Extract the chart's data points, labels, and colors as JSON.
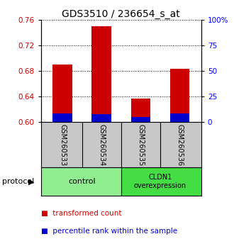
{
  "title": "GDS3510 / 236654_s_at",
  "samples": [
    "GSM260533",
    "GSM260534",
    "GSM260535",
    "GSM260536"
  ],
  "red_tops": [
    0.69,
    0.75,
    0.637,
    0.683
  ],
  "blue_tops": [
    0.613,
    0.612,
    0.608,
    0.613
  ],
  "baseline": 0.6,
  "ylim_left": [
    0.6,
    0.76
  ],
  "ylim_right": [
    0,
    100
  ],
  "yticks_left": [
    0.6,
    0.64,
    0.68,
    0.72,
    0.76
  ],
  "yticks_right": [
    0,
    25,
    50,
    75,
    100
  ],
  "ytick_labels_right": [
    "0",
    "25",
    "50",
    "75",
    "100%"
  ],
  "bar_width": 0.5,
  "red_color": "#CC0000",
  "blue_color": "#0000CC",
  "bg_color": "#C8C8C8",
  "plot_bg": "#FFFFFF",
  "control_color": "#90EE90",
  "overexp_color": "#44DD44",
  "title_fontsize": 10,
  "tick_fontsize": 7.5,
  "label_fontsize": 7,
  "proto_fontsize": 8
}
